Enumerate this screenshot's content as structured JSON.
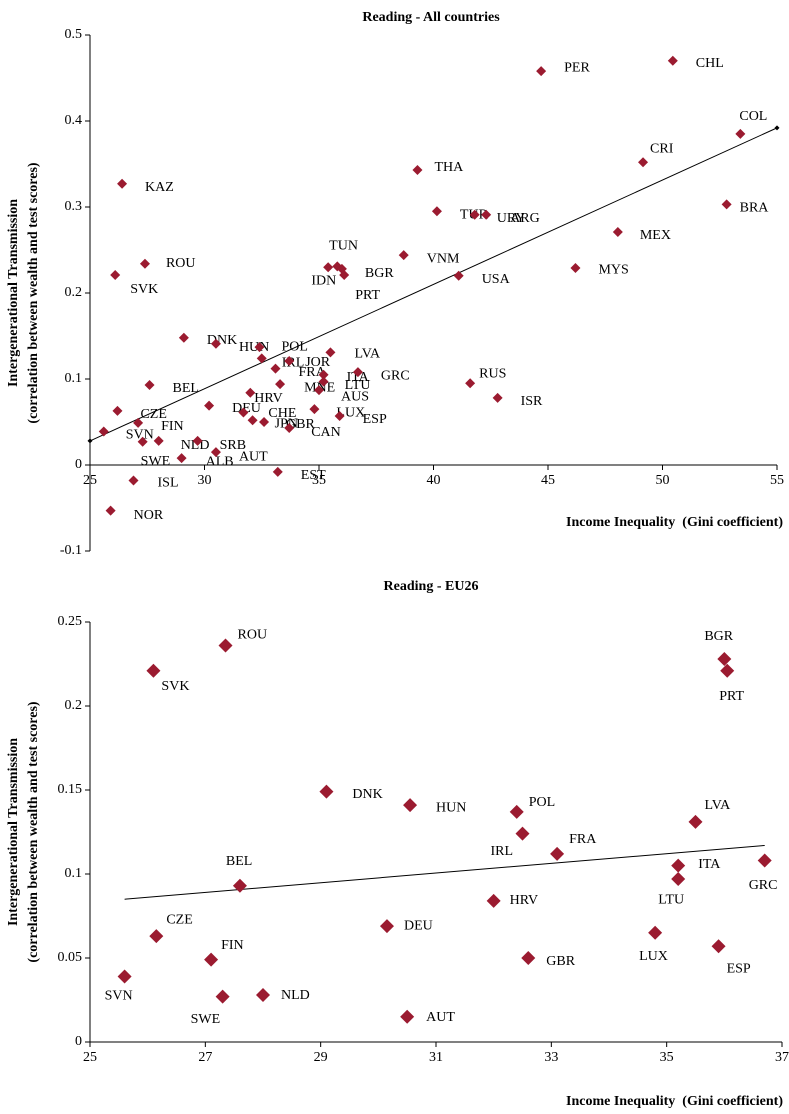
{
  "chart_data": [
    {
      "type": "scatter",
      "title": "Reading - All countries",
      "xlabel": "Income Inequality  (Gini coefficient)",
      "ylabel": [
        "Intergenerational Transmission",
        "(correlation between wealth and test scores)"
      ],
      "color": "#9b1b30",
      "labels": [
        "CHL",
        "PER",
        "COL",
        "CRI",
        "THA",
        "KAZ",
        "BRA",
        "TUR",
        "URY",
        "ARG",
        "MEX",
        "VNM",
        "ROU",
        "MYS",
        "TUN",
        "IDN",
        "BGR",
        "PRT",
        "USA",
        "SVK",
        "DNK",
        "HUN",
        "POL",
        "IRL",
        "JOR",
        "LVA",
        "FRA",
        "ITA",
        "GRC",
        "MNE",
        "LTU",
        "AUS",
        "RUS",
        "ISR",
        "BEL",
        "HRV",
        "CZE",
        "DEU",
        "CHE",
        "JPN",
        "GBR",
        "CAN",
        "LUX",
        "ESP",
        "FIN",
        "SVN",
        "NLD",
        "SRB",
        "SWE",
        "ALB",
        "AUT",
        "EST",
        "ISL",
        "NOR"
      ],
      "x": [
        50.45,
        44.7,
        53.4,
        49.15,
        39.3,
        26.4,
        52.8,
        40.15,
        41.8,
        42.3,
        48.05,
        38.7,
        27.4,
        46.2,
        35.4,
        35.8,
        36.0,
        36.1,
        41.1,
        26.1,
        29.1,
        30.5,
        32.4,
        32.5,
        33.7,
        35.5,
        33.1,
        35.2,
        36.7,
        33.3,
        35.2,
        35.0,
        41.6,
        42.8,
        27.6,
        32.0,
        26.2,
        30.2,
        31.7,
        32.1,
        32.6,
        33.7,
        34.8,
        35.9,
        27.1,
        25.6,
        28.0,
        29.7,
        27.3,
        29.0,
        30.5,
        33.2,
        26.9,
        25.9
      ],
      "values": [
        0.47,
        0.458,
        0.385,
        0.352,
        0.343,
        0.327,
        0.303,
        0.295,
        0.291,
        0.291,
        0.271,
        0.244,
        0.234,
        0.229,
        0.23,
        0.231,
        0.228,
        0.221,
        0.22,
        0.221,
        0.148,
        0.141,
        0.137,
        0.124,
        0.121,
        0.131,
        0.112,
        0.105,
        0.108,
        0.094,
        0.097,
        0.087,
        0.095,
        0.078,
        0.093,
        0.084,
        0.063,
        0.069,
        0.061,
        0.052,
        0.05,
        0.043,
        0.065,
        0.057,
        0.049,
        0.039,
        0.028,
        0.028,
        0.027,
        0.008,
        0.015,
        -0.008,
        -0.018,
        -0.053
      ],
      "trendline": {
        "x": [
          25,
          55
        ],
        "values": [
          0.028,
          0.392
        ]
      },
      "xlim": [
        25,
        55
      ],
      "xticks": [
        25,
        30,
        35,
        40,
        45,
        50,
        55
      ],
      "ylim": [
        -0.1,
        0.5
      ],
      "yticks": [
        0.5,
        0.4,
        0.3,
        0.2,
        0.1,
        0,
        -0.1
      ]
    },
    {
      "type": "scatter",
      "title": "Reading - EU26",
      "xlabel": "Income Inequality  (Gini coefficient)",
      "ylabel": [
        "Intergenerational Transmission",
        "(correlation between wealth and test scores)"
      ],
      "color": "#9b1b30",
      "labels": [
        "ROU",
        "SVK",
        "BGR",
        "PRT",
        "DNK",
        "HUN",
        "POL",
        "IRL",
        "LVA",
        "FRA",
        "ITA",
        "LTU",
        "GRC",
        "BEL",
        "HRV",
        "DEU",
        "CZE",
        "LUX",
        "ESP",
        "FIN",
        "GBR",
        "SVN",
        "SWE",
        "NLD",
        "AUT"
      ],
      "x": [
        27.35,
        26.1,
        36.0,
        36.05,
        29.1,
        30.55,
        32.4,
        32.5,
        35.5,
        33.1,
        35.2,
        35.2,
        36.7,
        27.6,
        32.0,
        30.15,
        26.15,
        34.8,
        35.9,
        27.1,
        32.6,
        25.6,
        27.3,
        28.0,
        30.5
      ],
      "values": [
        0.236,
        0.221,
        0.228,
        0.221,
        0.149,
        0.141,
        0.137,
        0.124,
        0.131,
        0.112,
        0.105,
        0.097,
        0.108,
        0.093,
        0.084,
        0.069,
        0.063,
        0.065,
        0.057,
        0.049,
        0.05,
        0.039,
        0.027,
        0.028,
        0.015
      ],
      "trendline": {
        "x": [
          25.6,
          36.7
        ],
        "values": [
          0.085,
          0.117
        ]
      },
      "xlim": [
        25,
        37
      ],
      "xticks": [
        25,
        27,
        29,
        31,
        33,
        35,
        37
      ],
      "ylim": [
        0,
        0.25
      ],
      "yticks": [
        0.25,
        0.2,
        0.15,
        0.1,
        0.05,
        0
      ]
    }
  ]
}
